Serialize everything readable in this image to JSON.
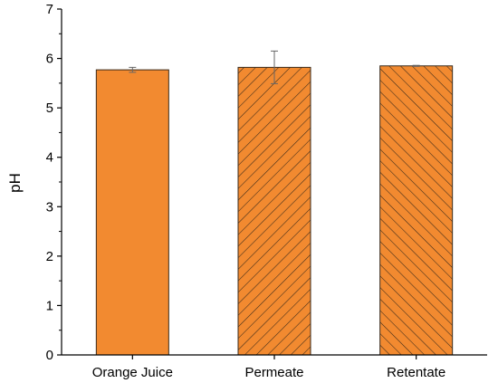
{
  "chart_data": {
    "type": "bar",
    "title": "",
    "xlabel": "",
    "ylabel": "pH",
    "ylim": [
      0,
      7
    ],
    "yticks": [
      0,
      1,
      2,
      3,
      4,
      5,
      6,
      7
    ],
    "grid": false,
    "categories": [
      "Orange Juice",
      "Permeate",
      "Retentate"
    ],
    "values": [
      5.77,
      5.82,
      5.85
    ],
    "errors": [
      0.05,
      0.33,
      0.01
    ],
    "patterns": [
      "solid",
      "hatch-forward",
      "hatch-backward"
    ],
    "colors": {
      "bar_fill": "#f28a30",
      "bar_edge": "#3a2a1a",
      "hatch": "#3a2a1a",
      "error_bar": "#666666",
      "axis": "#000000"
    }
  }
}
